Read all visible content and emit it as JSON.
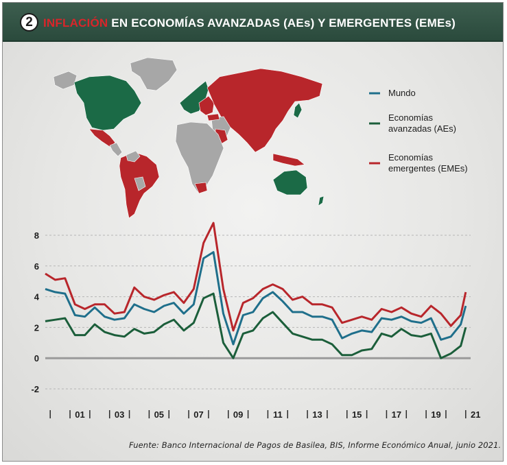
{
  "header": {
    "badge": "2",
    "title_highlight": "INFLACIÓN",
    "title_rest": " EN ECONOMÍAS AVANZADAS (AEs) Y EMERGENTES (EMEs)"
  },
  "source": "Fuente: Banco Internacional de Pagos de Basilea, BIS, Informe Económico Anual, junio 2021.",
  "map": {
    "colors": {
      "aes": "#1b6a46",
      "emes": "#b8262b",
      "other": "#a7a7a7"
    }
  },
  "chart_data": {
    "type": "line",
    "x": [
      2000.0,
      2000.5,
      2001.0,
      2001.5,
      2002.0,
      2002.5,
      2003.0,
      2003.5,
      2004.0,
      2004.5,
      2005.0,
      2005.5,
      2006.0,
      2006.5,
      2007.0,
      2007.5,
      2008.0,
      2008.5,
      2009.0,
      2009.5,
      2010.0,
      2010.5,
      2011.0,
      2011.5,
      2012.0,
      2012.5,
      2013.0,
      2013.5,
      2014.0,
      2014.5,
      2015.0,
      2015.5,
      2016.0,
      2016.5,
      2017.0,
      2017.5,
      2018.0,
      2018.5,
      2019.0,
      2019.5,
      2020.0,
      2020.5,
      2021.0,
      2021.25
    ],
    "series": [
      {
        "name": "Economías emergentes (EMEs)",
        "color": "#b8262b",
        "values": [
          5.5,
          5.1,
          5.2,
          3.5,
          3.2,
          3.5,
          3.5,
          2.9,
          3.0,
          4.6,
          4.0,
          3.8,
          4.1,
          4.3,
          3.6,
          4.5,
          7.5,
          8.8,
          4.5,
          1.8,
          3.6,
          3.9,
          4.5,
          4.8,
          4.5,
          3.8,
          4.0,
          3.5,
          3.5,
          3.3,
          2.3,
          2.5,
          2.7,
          2.5,
          3.2,
          3.0,
          3.3,
          2.9,
          2.7,
          3.4,
          2.9,
          2.1,
          2.8,
          4.3
        ]
      },
      {
        "name": "Mundo",
        "color": "#1f6f8b",
        "values": [
          4.5,
          4.3,
          4.2,
          2.8,
          2.7,
          3.3,
          2.7,
          2.5,
          2.6,
          3.5,
          3.2,
          3.0,
          3.4,
          3.6,
          2.9,
          3.5,
          6.5,
          6.9,
          2.9,
          0.9,
          2.8,
          3.0,
          3.9,
          4.3,
          3.7,
          3.0,
          3.0,
          2.7,
          2.7,
          2.5,
          1.3,
          1.6,
          1.8,
          1.7,
          2.6,
          2.5,
          2.7,
          2.4,
          2.3,
          2.6,
          1.2,
          1.4,
          2.2,
          3.4
        ]
      },
      {
        "name": "Economías avanzadas (AEs)",
        "color": "#1b5e3a",
        "values": [
          2.4,
          2.5,
          2.6,
          1.5,
          1.5,
          2.2,
          1.7,
          1.5,
          1.4,
          1.9,
          1.6,
          1.7,
          2.2,
          2.5,
          1.8,
          2.3,
          3.9,
          4.2,
          1.0,
          0.0,
          1.6,
          1.8,
          2.6,
          3.0,
          2.3,
          1.6,
          1.4,
          1.2,
          1.2,
          0.9,
          0.2,
          0.2,
          0.5,
          0.6,
          1.6,
          1.4,
          1.9,
          1.5,
          1.4,
          1.6,
          0.0,
          0.3,
          0.8,
          2.0
        ]
      }
    ],
    "yticks": [
      "8",
      "6",
      "4",
      "2",
      "0",
      "-2"
    ],
    "xticks": [
      "01",
      "03",
      "05",
      "07",
      "09",
      "11",
      "13",
      "15",
      "17",
      "19",
      "21"
    ],
    "ylim": [
      -2,
      8
    ],
    "grid": true,
    "zero_line": true,
    "legend_placement": "top-right"
  }
}
